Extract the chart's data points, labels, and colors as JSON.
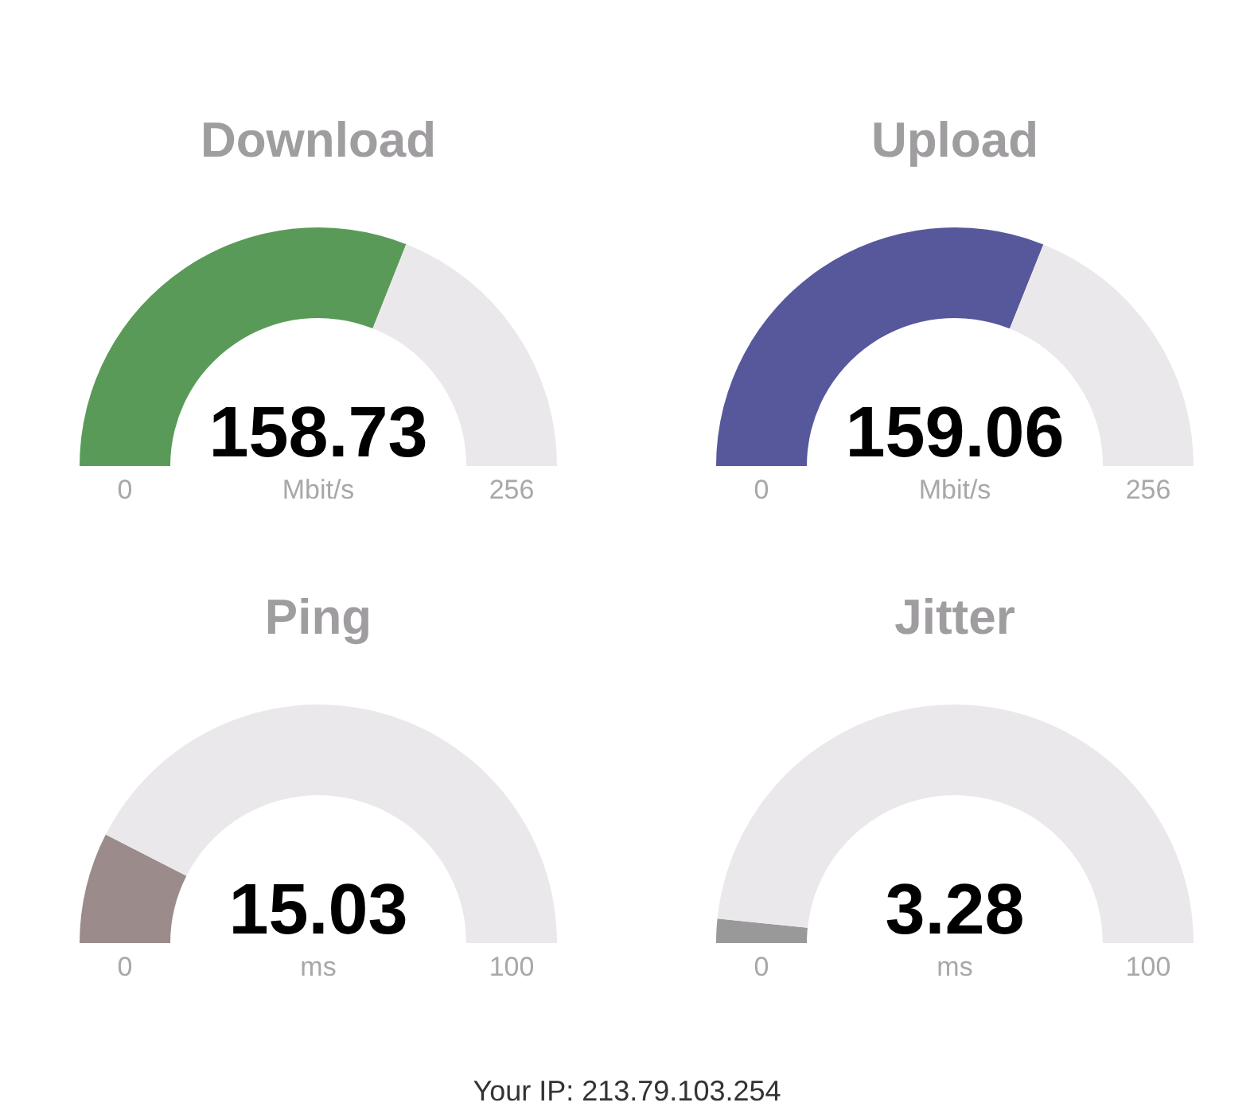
{
  "chart_data": [
    {
      "type": "donut",
      "title": "Download",
      "categories": [
        null,
        null
      ],
      "values": [
        62.0,
        38.0
      ],
      "colors": [
        "#5a9a58",
        "#ebe8eb"
      ],
      "annotations": [
        "158.73",
        "0",
        "Mbit/s",
        "256"
      ]
    },
    {
      "type": "donut",
      "title": "Upload",
      "categories": [
        null,
        null
      ],
      "values": [
        62.1,
        37.9
      ],
      "colors": [
        "#57579c",
        "#ebe8eb"
      ],
      "annotations": [
        "159.06",
        "0",
        "Mbit/s",
        "256"
      ]
    },
    {
      "type": "donut",
      "title": "Ping",
      "categories": [
        null,
        null
      ],
      "values": [
        15.03,
        84.97
      ],
      "colors": [
        "#9b8b8b",
        "#ebe8eb"
      ],
      "annotations": [
        "15.03",
        "0",
        "ms",
        "100"
      ]
    },
    {
      "type": "donut",
      "title": "Jitter",
      "categories": [
        null,
        null
      ],
      "values": [
        3.28,
        96.72
      ],
      "colors": [
        "#999999",
        "#ebe8eb"
      ],
      "annotations": [
        "3.28",
        "0",
        "ms",
        "100"
      ]
    },
    {
      "type": "other",
      "annotations": [
        "Your IP: 213.79.103.254"
      ]
    }
  ]
}
